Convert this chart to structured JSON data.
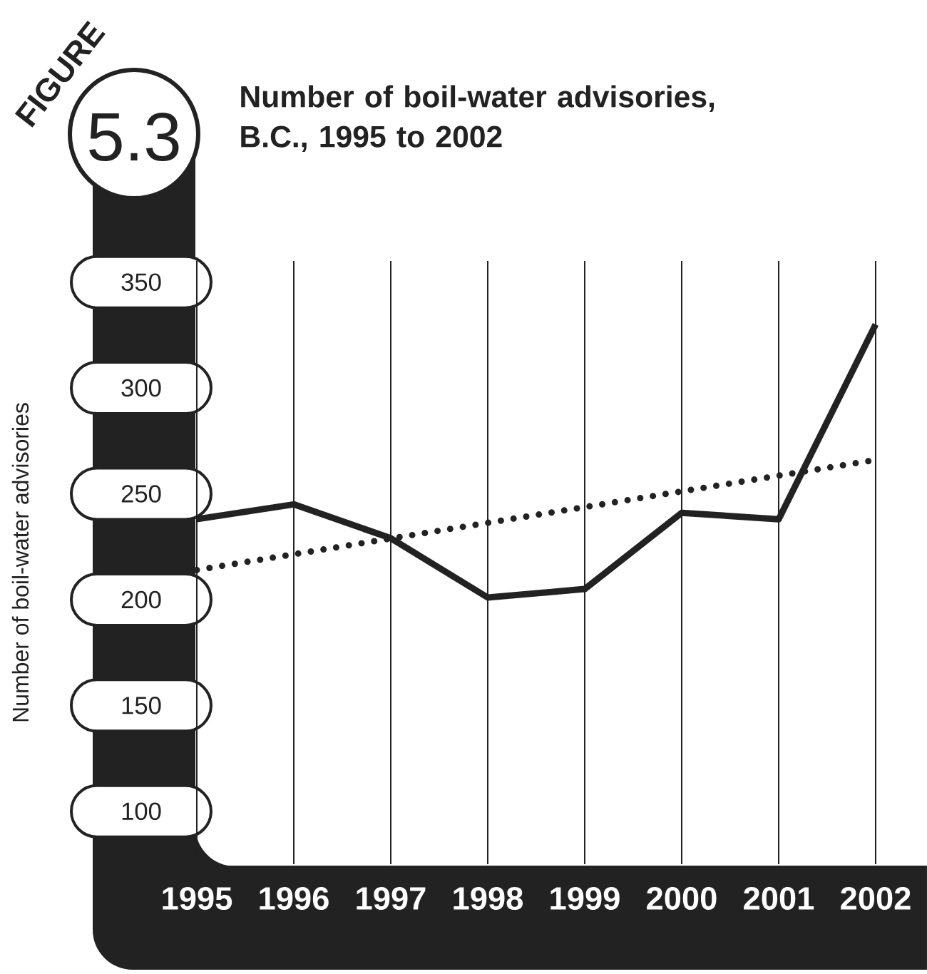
{
  "chart_data": {
    "type": "line",
    "title": "Number of boil-water advisories, B.C., 1995 to 2002",
    "ylabel": "Number of boil-water advisories",
    "annotations": [
      "FIGURE",
      "5.3"
    ],
    "series": [
      {
        "color": "#222222",
        "line_style": "solid",
        "x": [
          1995,
          1996,
          1997,
          1998,
          1999,
          2000,
          2001,
          2002
        ],
        "values": [
          238,
          245,
          229,
          201,
          205,
          241,
          238,
          330
        ]
      },
      {
        "color": "#222222",
        "line_style": "dotted",
        "x": [
          1995,
          2002
        ],
        "values": [
          214,
          266
        ]
      }
    ],
    "xlim": [
      1995,
      2002
    ],
    "ylim": [
      75,
      360
    ],
    "xticks": [
      1995,
      1996,
      1997,
      1998,
      1999,
      2000,
      2001,
      2002
    ],
    "yticks": [
      100,
      150,
      200,
      250,
      300,
      350
    ],
    "grid": "x"
  }
}
